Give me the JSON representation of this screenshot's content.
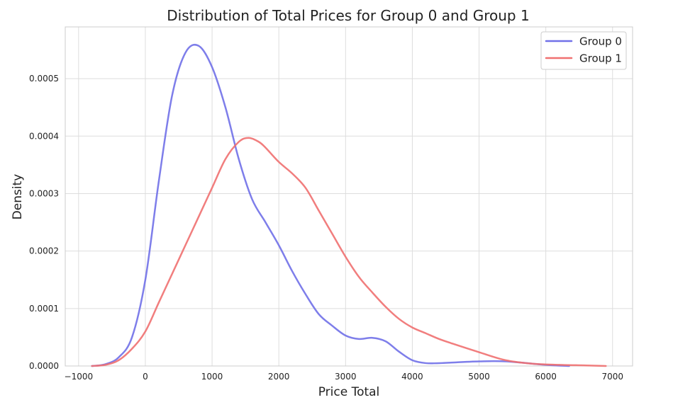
{
  "chart_data": {
    "type": "line",
    "title": "Distribution of Total Prices for Group 0 and Group 1",
    "xlabel": "Price Total",
    "ylabel": "Density",
    "xlim": [
      -1200,
      7300
    ],
    "ylim": [
      0,
      0.00059
    ],
    "x_ticks": [
      -1000,
      0,
      1000,
      2000,
      3000,
      4000,
      5000,
      6000,
      7000
    ],
    "x_tick_labels": [
      "−1000",
      "0",
      "1000",
      "2000",
      "3000",
      "4000",
      "5000",
      "6000",
      "7000"
    ],
    "y_ticks": [
      0,
      0.0001,
      0.0002,
      0.0003,
      0.0004,
      0.0005
    ],
    "y_tick_labels": [
      "0.0000",
      "0.0001",
      "0.0002",
      "0.0003",
      "0.0004",
      "0.0005"
    ],
    "grid": true,
    "legend_position": "top-right",
    "series": [
      {
        "name": "Group 0",
        "color": "#7070e8",
        "x": [
          -800,
          -600,
          -400,
          -200,
          0,
          200,
          400,
          600,
          800,
          1000,
          1200,
          1400,
          1600,
          1800,
          2000,
          2200,
          2400,
          2600,
          2800,
          3000,
          3200,
          3400,
          3600,
          3800,
          4000,
          4200,
          4400,
          5000,
          5400,
          6000,
          6350
        ],
        "y": [
          0,
          3e-06,
          1.5e-05,
          5e-05,
          0.00015,
          0.00032,
          0.00047,
          0.000545,
          0.000557,
          0.00052,
          0.00045,
          0.00036,
          0.00029,
          0.00025,
          0.00021,
          0.000165,
          0.000125,
          9e-05,
          7e-05,
          5.3e-05,
          4.7e-05,
          4.9e-05,
          4.3e-05,
          2.5e-05,
          1e-05,
          5e-06,
          5e-06,
          8e-06,
          8e-06,
          2e-06,
          0
        ]
      },
      {
        "name": "Group 1",
        "color": "#f07070",
        "x": [
          -800,
          -600,
          -400,
          -200,
          0,
          200,
          400,
          600,
          800,
          1000,
          1200,
          1400,
          1550,
          1700,
          1800,
          2000,
          2200,
          2400,
          2600,
          2800,
          3000,
          3200,
          3400,
          3600,
          3800,
          4000,
          4200,
          4400,
          4600,
          5000,
          5400,
          5800,
          6200,
          6600,
          6900
        ],
        "y": [
          0,
          2e-06,
          1e-05,
          3e-05,
          6e-05,
          0.00011,
          0.00016,
          0.00021,
          0.00026,
          0.00031,
          0.00036,
          0.00039,
          0.000397,
          0.00039,
          0.00038,
          0.000355,
          0.000335,
          0.00031,
          0.00027,
          0.00023,
          0.00019,
          0.000155,
          0.000128,
          0.000103,
          8.2e-05,
          6.7e-05,
          5.7e-05,
          4.7e-05,
          3.9e-05,
          2.4e-05,
          1e-05,
          4e-06,
          2e-06,
          1e-06,
          0
        ]
      }
    ]
  }
}
